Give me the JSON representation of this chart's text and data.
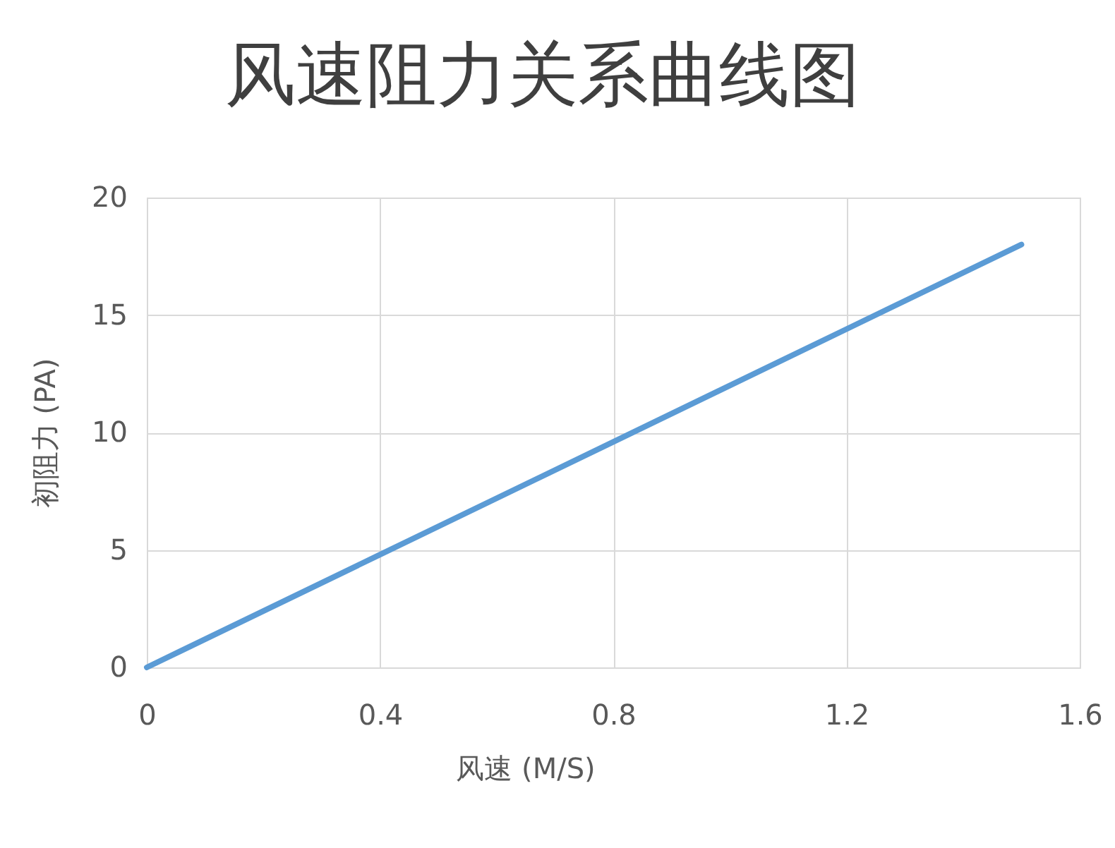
{
  "chart_data": {
    "type": "line",
    "title": "风速阻力关系曲线图",
    "xlabel": "风速 (M/S)",
    "ylabel": "初阻力 (PA)",
    "x": [
      0,
      0.4,
      0.8,
      1.2,
      1.5
    ],
    "series": [
      {
        "color": "#5b9bd5",
        "values": [
          0,
          4.8,
          9.6,
          14.4,
          18
        ]
      }
    ],
    "xlim": [
      0,
      1.6
    ],
    "ylim": [
      0,
      20
    ],
    "xticks": [
      0,
      0.4,
      0.8,
      1.2,
      1.6
    ],
    "yticks": [
      0,
      5,
      10,
      15,
      20
    ],
    "grid": true,
    "marker": "none",
    "line_style": "solid"
  }
}
